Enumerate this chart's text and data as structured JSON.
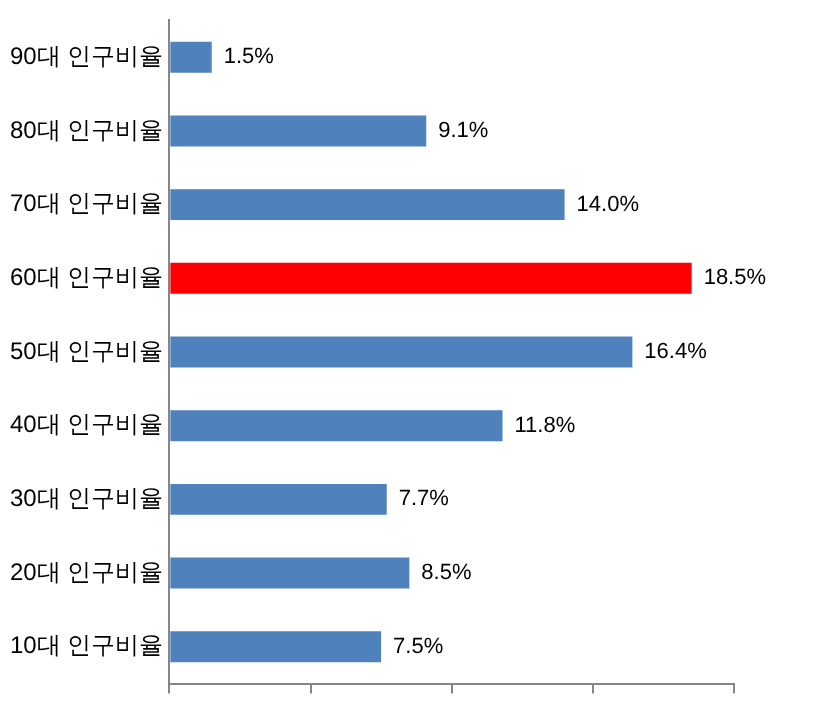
{
  "chart_data": {
    "type": "bar",
    "orientation": "horizontal",
    "categories": [
      "90대 인구비율",
      "80대 인구비율",
      "70대 인구비율",
      "60대 인구비율",
      "50대 인구비율",
      "40대 인구비율",
      "30대 인구비율",
      "20대 인구비율",
      "10대 인구비율"
    ],
    "values": [
      1.5,
      9.1,
      14.0,
      18.5,
      16.4,
      11.8,
      7.7,
      8.5,
      7.5
    ],
    "colors": [
      "#4f81bd",
      "#4f81bd",
      "#4f81bd",
      "#ff0000",
      "#4f81bd",
      "#4f81bd",
      "#4f81bd",
      "#4f81bd",
      "#4f81bd"
    ],
    "value_labels": [
      "1.5%",
      "9.1%",
      "14.0%",
      "18.5%",
      "16.4%",
      "11.8%",
      "7.7%",
      "8.5%",
      "7.5%"
    ],
    "xlim": [
      0,
      20
    ],
    "xticks": [
      {
        "value": 0,
        "label": null
      },
      {
        "value": 5,
        "label": null
      },
      {
        "value": 10,
        "label": null
      },
      {
        "value": 15,
        "label": null
      },
      {
        "value": 20,
        "label": null
      }
    ],
    "tick_labels": "y",
    "grid": false,
    "legend": false
  }
}
